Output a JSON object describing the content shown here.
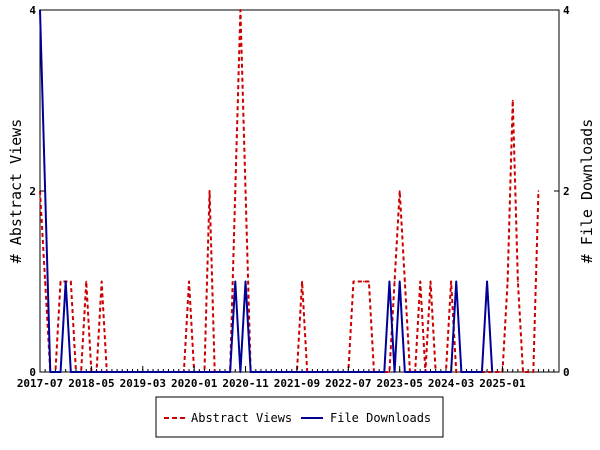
{
  "chart_data": {
    "type": "line",
    "y_left_label": "# Abstract Views",
    "y_right_label": "# File Downloads",
    "y_left_range": [
      0,
      4
    ],
    "y_right_range": [
      0,
      4
    ],
    "y_left_ticks": [
      "0",
      "2",
      "4"
    ],
    "y_right_ticks": [
      "0",
      "2",
      "4"
    ],
    "x_range": [
      "2017-07",
      "2025-12"
    ],
    "x_ticks": [
      "2017-07",
      "2018-05",
      "2019-03",
      "2020-01",
      "2020-11",
      "2021-09",
      "2022-07",
      "2023-05",
      "2024-03",
      "2025-01"
    ],
    "legend_position": "bottom",
    "series": [
      {
        "name": "Abstract Views",
        "color": "#cc0000",
        "style": "dashed",
        "axis": "left",
        "points": [
          [
            "2017-07",
            2
          ],
          [
            "2017-08",
            1
          ],
          [
            "2017-09",
            0
          ],
          [
            "2017-10",
            0
          ],
          [
            "2017-11",
            1
          ],
          [
            "2017-12",
            1
          ],
          [
            "2018-01",
            1
          ],
          [
            "2018-02",
            0
          ],
          [
            "2018-03",
            0
          ],
          [
            "2018-04",
            1
          ],
          [
            "2018-05",
            0
          ],
          [
            "2018-06",
            0
          ],
          [
            "2018-07",
            1
          ],
          [
            "2018-08",
            0
          ],
          [
            "2018-09",
            0
          ],
          [
            "2019-11",
            0
          ],
          [
            "2019-12",
            1
          ],
          [
            "2020-01",
            0
          ],
          [
            "2020-02",
            0
          ],
          [
            "2020-03",
            0
          ],
          [
            "2020-04",
            2
          ],
          [
            "2020-05",
            0
          ],
          [
            "2020-06",
            0
          ],
          [
            "2020-07",
            0
          ],
          [
            "2020-08",
            0
          ],
          [
            "2020-09",
            2
          ],
          [
            "2020-10",
            4
          ],
          [
            "2020-11",
            2
          ],
          [
            "2020-12",
            0
          ],
          [
            "2021-09",
            0
          ],
          [
            "2021-10",
            1
          ],
          [
            "2021-11",
            0
          ],
          [
            "2022-07",
            0
          ],
          [
            "2022-08",
            1
          ],
          [
            "2022-09",
            1
          ],
          [
            "2022-10",
            1
          ],
          [
            "2022-11",
            1
          ],
          [
            "2022-12",
            0
          ],
          [
            "2023-03",
            0
          ],
          [
            "2023-04",
            1
          ],
          [
            "2023-05",
            2
          ],
          [
            "2023-06",
            1
          ],
          [
            "2023-07",
            0
          ],
          [
            "2023-08",
            0
          ],
          [
            "2023-09",
            1
          ],
          [
            "2023-10",
            0
          ],
          [
            "2023-11",
            1
          ],
          [
            "2023-12",
            0
          ],
          [
            "2024-02",
            0
          ],
          [
            "2024-03",
            1
          ],
          [
            "2024-04",
            0
          ],
          [
            "2025-01",
            0
          ],
          [
            "2025-02",
            1
          ],
          [
            "2025-03",
            3
          ],
          [
            "2025-04",
            1
          ],
          [
            "2025-05",
            0
          ],
          [
            "2025-06",
            0
          ],
          [
            "2025-07",
            0
          ],
          [
            "2025-08",
            2
          ]
        ]
      },
      {
        "name": "File Downloads",
        "color": "#000099",
        "style": "solid",
        "axis": "right",
        "points": [
          [
            "2017-07",
            4
          ],
          [
            "2017-08",
            2
          ],
          [
            "2017-09",
            0
          ],
          [
            "2017-10",
            0
          ],
          [
            "2017-11",
            0
          ],
          [
            "2017-12",
            1
          ],
          [
            "2018-01",
            0
          ],
          [
            "2020-08",
            0
          ],
          [
            "2020-09",
            1
          ],
          [
            "2020-10",
            0
          ],
          [
            "2020-11",
            1
          ],
          [
            "2020-12",
            0
          ],
          [
            "2023-02",
            0
          ],
          [
            "2023-03",
            1
          ],
          [
            "2023-04",
            0
          ],
          [
            "2023-05",
            1
          ],
          [
            "2023-06",
            0
          ],
          [
            "2024-03",
            0
          ],
          [
            "2024-04",
            1
          ],
          [
            "2024-05",
            0
          ],
          [
            "2024-09",
            0
          ],
          [
            "2024-10",
            1
          ],
          [
            "2024-11",
            0
          ]
        ]
      }
    ]
  }
}
